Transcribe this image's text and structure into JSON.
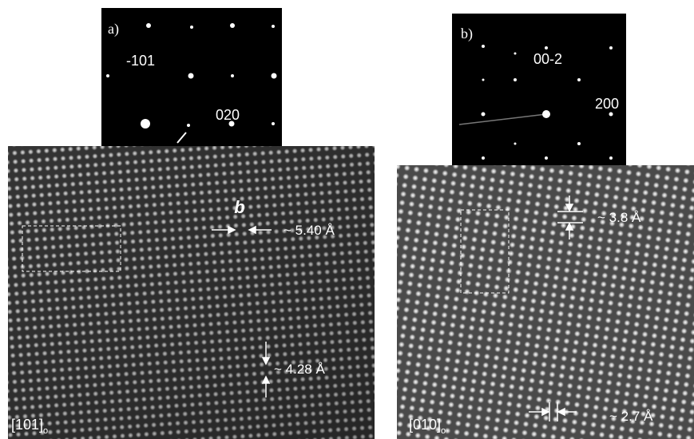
{
  "panels": [
    {
      "label": "a)",
      "spots": [
        "-101",
        "020"
      ],
      "spacing_label": "b",
      "annotations": [
        "~ 5.40 Å",
        "~ 4.28 Å"
      ],
      "zone_axis": "[101]",
      "zone_subscript": "o"
    },
    {
      "label": "b)",
      "spots": [
        "00-2",
        "200"
      ],
      "annotations": [
        "~ 3.8 Å",
        "~ 2.7 Å"
      ],
      "zone_axis": "[010]",
      "zone_subscript": "o"
    }
  ]
}
